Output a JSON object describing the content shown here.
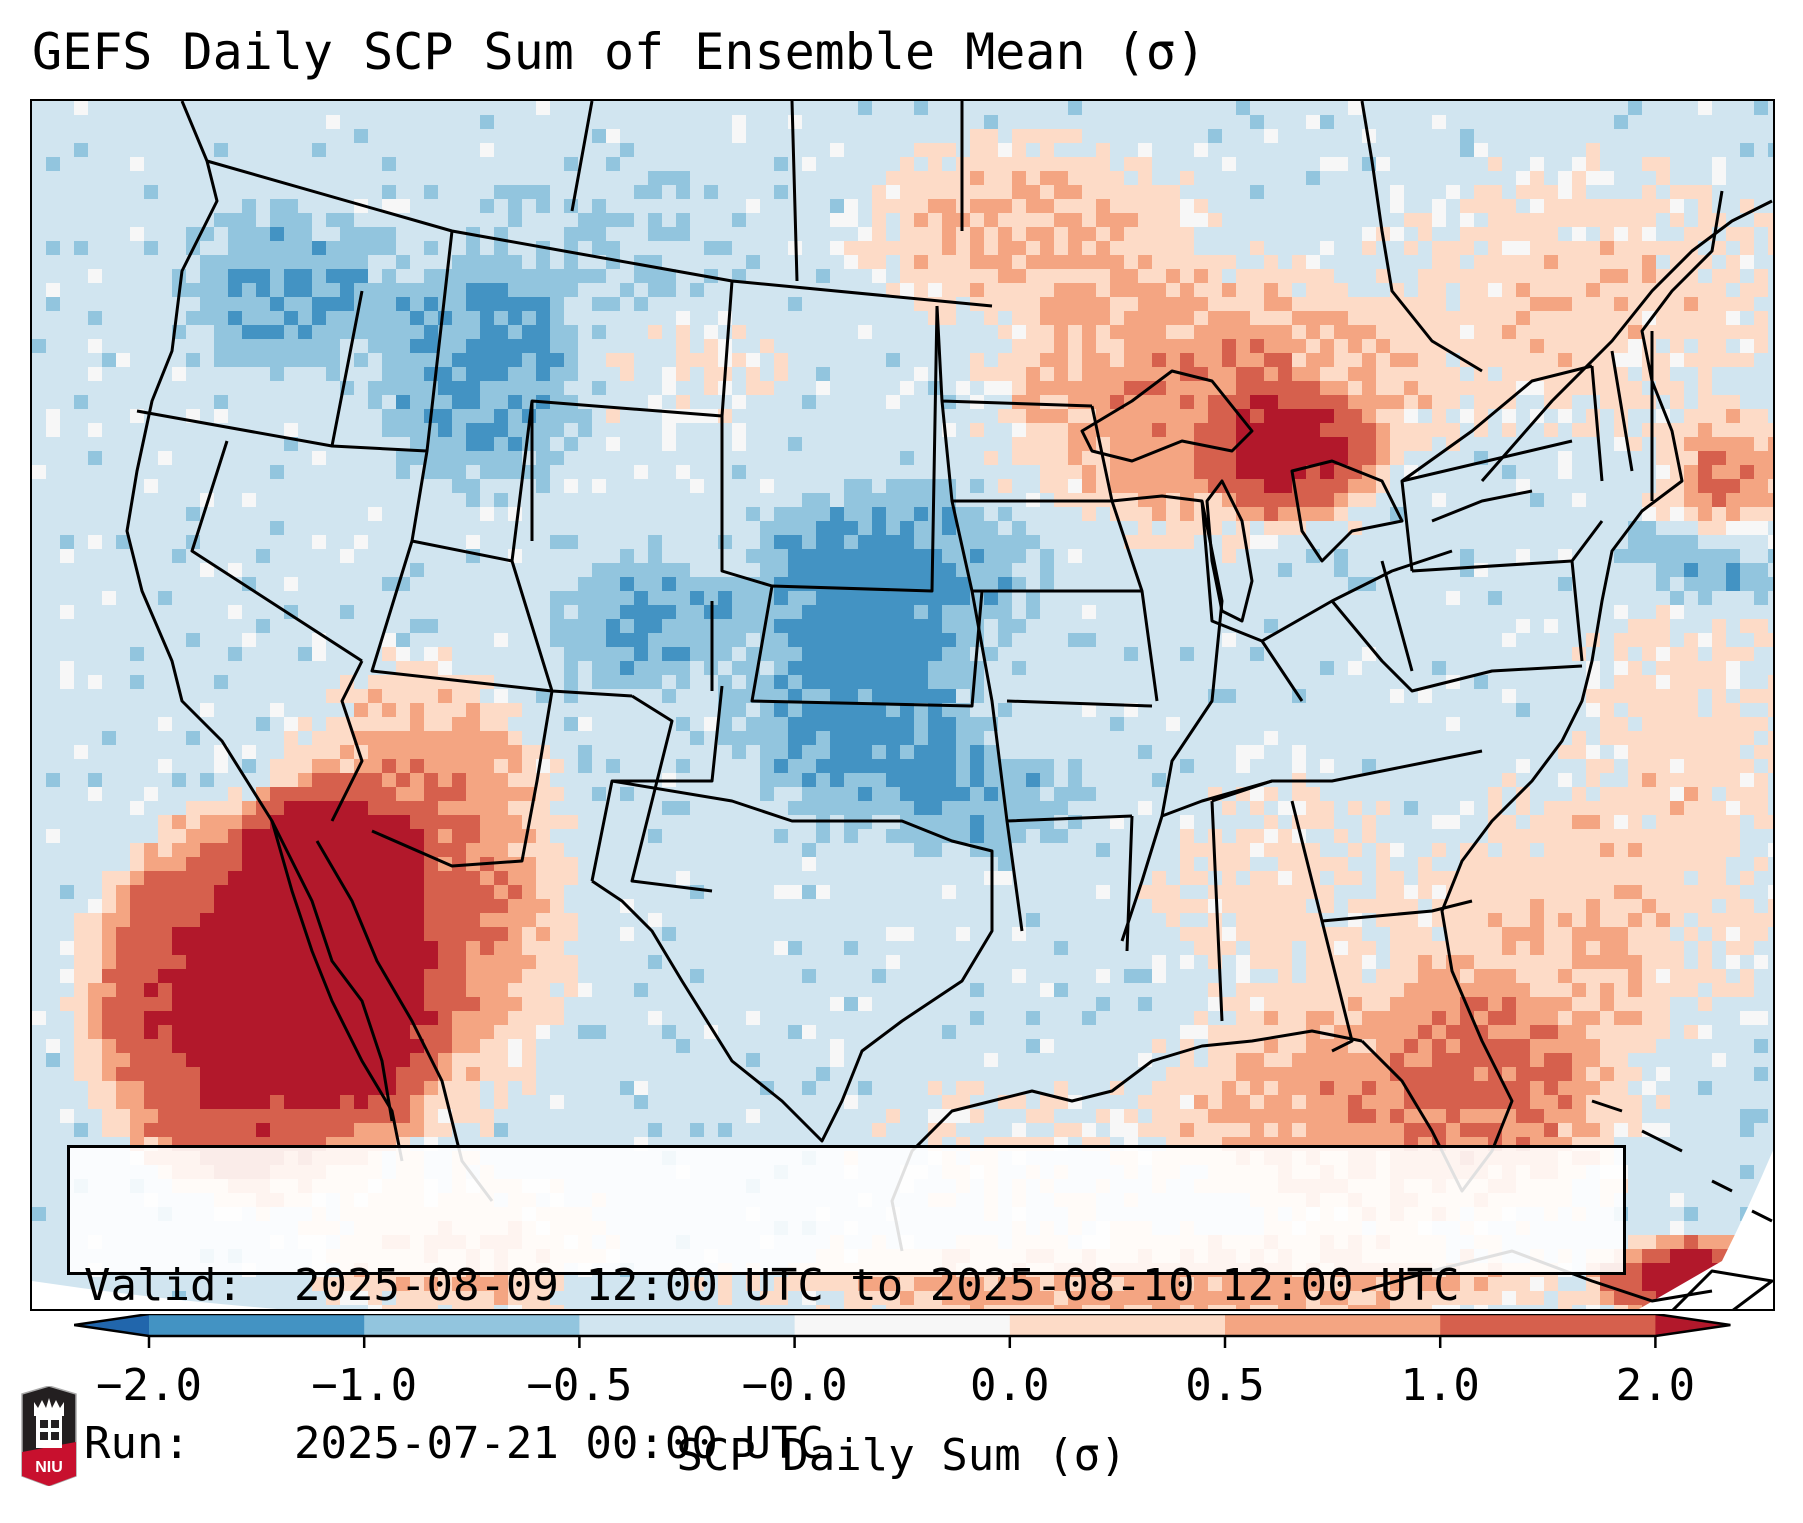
{
  "figure": {
    "title": "GEFS Daily SCP Sum of Ensemble Mean (σ)",
    "subject": "Supercell Composite Parameter daily sum anomaly over CONUS",
    "projection_extent": "Contiguous United States, southern Canada, northern Mexico, Gulf of Mexico, Caribbean"
  },
  "info_box": {
    "valid_label": "Valid:",
    "valid_value": "2025-08-09 12:00 UTC to 2025-08-10 12:00 UTC",
    "run_label": "Run:",
    "run_value": "2025-07-21 00:00 UTC"
  },
  "colorbar": {
    "label": "SCP Daily Sum (σ)",
    "extend": "both",
    "ticks": [
      "−2.0",
      "−1.0",
      "−0.5",
      "−0.0",
      "0.0",
      "0.5",
      "1.0",
      "2.0"
    ],
    "bins": [
      {
        "range": "< −2.0",
        "color": "#2166ac"
      },
      {
        "range": "−2.0 to −1.0",
        "color": "#4393c3"
      },
      {
        "range": "−1.0 to −0.5",
        "color": "#92c5de"
      },
      {
        "range": "−0.5 to −0.0",
        "color": "#d1e5f0"
      },
      {
        "range": "−0.0 to 0.0",
        "color": "#f7f7f7"
      },
      {
        "range": "0.0 to 0.5",
        "color": "#fddbc7"
      },
      {
        "range": "0.5 to 1.0",
        "color": "#f4a582"
      },
      {
        "range": "1.0 to 2.0",
        "color": "#d6604d"
      },
      {
        "range": "> 2.0",
        "color": "#b2182b"
      }
    ]
  },
  "logo": {
    "text": "NIU",
    "name": "Northern Illinois University"
  },
  "colors": {
    "border": "#000000",
    "background": "#ffffff"
  }
}
